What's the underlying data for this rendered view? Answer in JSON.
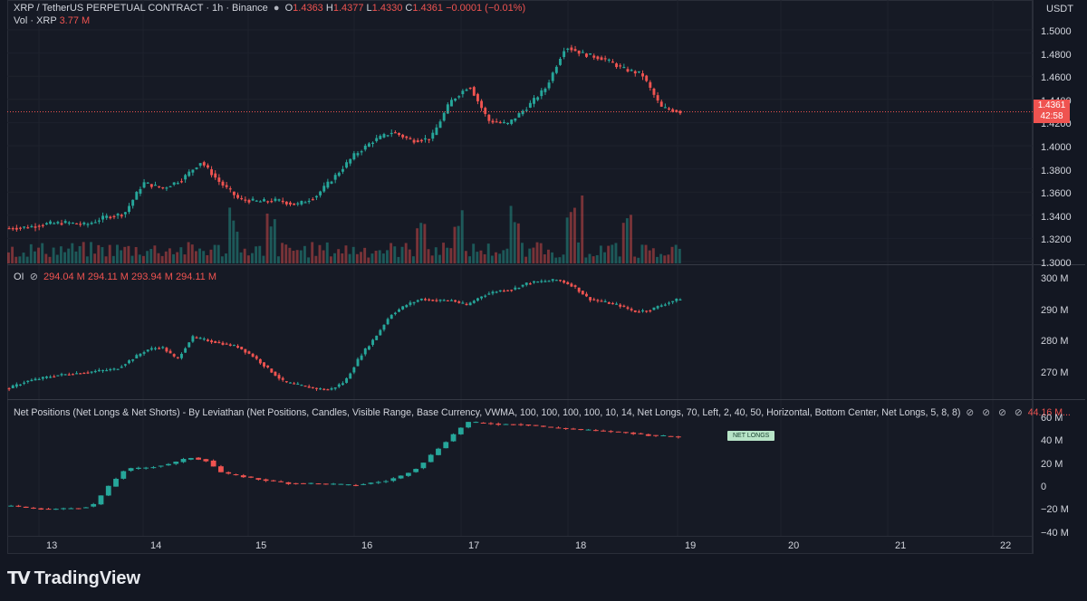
{
  "header": {
    "symbol": "XRP / TetherUS PERPETUAL CONTRACT · 1h · Binance",
    "o_label": "O",
    "o_value": "1.4363",
    "h_label": "H",
    "h_value": "1.4377",
    "l_label": "L",
    "l_value": "1.4330",
    "c_label": "C",
    "c_value": "1.4361",
    "change": "−0.0001 (−0.01%)"
  },
  "volume_legend": {
    "label": "Vol · XRP",
    "value": "3.77 M"
  },
  "oi_legend": {
    "label": "OI",
    "o": "294.04 M",
    "h": "294.11 M",
    "l": "293.94 M",
    "c": "294.11 M"
  },
  "netpos_legend": {
    "label": "Net Positions (Net Longs & Net Shorts) - By Leviathan (Net Positions, Candles, Visible Range, Base Currency, VWMA, 100, 100, 100, 100, 10, 14, Net Longs, 70, Left, 2, 40, 50, Horizontal, Bottom Center, Net Longs, 5, 8, 8)",
    "value": "44.16 M..."
  },
  "price_scale": {
    "currency": "USDT",
    "ticks": [
      "1.5000",
      "1.4800",
      "1.4600",
      "1.4400",
      "1.4200",
      "1.4000",
      "1.3800",
      "1.3600",
      "1.3400",
      "1.3200",
      "1.3000"
    ],
    "last_price": "1.4361",
    "countdown": "42:58"
  },
  "oi_scale": {
    "ticks": [
      "300 M",
      "290 M",
      "280 M",
      "270 M"
    ]
  },
  "netpos_scale": {
    "ticks": [
      "60 M",
      "40 M",
      "20 M",
      "0",
      "−20 M",
      "−40 M"
    ]
  },
  "time_axis": {
    "labels": [
      "13",
      "14",
      "15",
      "16",
      "17",
      "18",
      "19",
      "20",
      "21",
      "22"
    ]
  },
  "net_longs_tag": "NET LONGS",
  "brand": {
    "name": "TradingView"
  },
  "colors": {
    "up": "#26a69a",
    "down": "#ef5350",
    "background": "#161a25"
  },
  "chart_data": [
    {
      "type": "candlestick",
      "name": "XRP price (1h)",
      "y_unit": "USDT",
      "ylim": [
        1.3,
        1.51
      ],
      "x": [
        "13",
        "14",
        "15",
        "16",
        "17",
        "18",
        "19",
        "20",
        "21",
        "22"
      ],
      "approx_close_path": [
        1.331,
        1.332,
        1.335,
        1.336,
        1.334,
        1.341,
        1.344,
        1.372,
        1.367,
        1.375,
        1.391,
        1.372,
        1.357,
        1.355,
        1.356,
        1.352,
        1.36,
        1.378,
        1.397,
        1.41,
        1.418,
        1.41,
        1.412,
        1.445,
        1.46,
        1.428,
        1.425,
        1.44,
        1.458,
        1.495,
        1.488,
        1.484,
        1.475,
        1.47,
        1.44,
        1.436
      ],
      "last": 1.4361
    },
    {
      "type": "bar",
      "name": "Volume",
      "unit": "XRP",
      "last": "3.77M"
    },
    {
      "type": "candlestick",
      "name": "OI",
      "y_unit": "M",
      "ylim": [
        264,
        302
      ],
      "approx_close_path": [
        266,
        268,
        269,
        270,
        270.5,
        271,
        271.5,
        272,
        275,
        278,
        279,
        275,
        282,
        281,
        280,
        279,
        276,
        272,
        268,
        267,
        266,
        265.5,
        268,
        276,
        282,
        289,
        292,
        294,
        293.5,
        293.6,
        292,
        295,
        296.5,
        297,
        299,
        299.5,
        300,
        298,
        294,
        293,
        292,
        290,
        290.5,
        292.5,
        294.1
      ],
      "last": 294.11
    },
    {
      "type": "candlestick",
      "name": "Net Positions",
      "y_unit": "M",
      "ylim": [
        -43,
        65
      ],
      "approx_close_path": [
        -20,
        -22,
        -23,
        -23,
        -22,
        -20,
        -2,
        14,
        15,
        17,
        20,
        25,
        22,
        10,
        8,
        5,
        3,
        1,
        1,
        0.5,
        0,
        -1,
        1,
        3,
        8,
        16,
        30,
        44,
        58,
        57,
        56,
        56,
        55,
        53,
        52,
        51,
        50,
        49,
        48,
        46,
        45,
        44.16
      ],
      "last": 44.16
    }
  ]
}
